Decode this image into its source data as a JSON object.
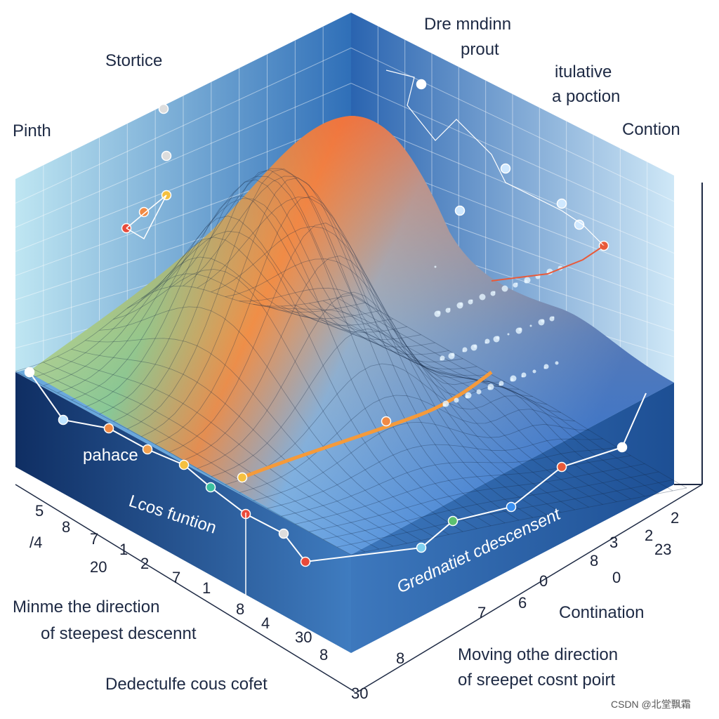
{
  "labels": {
    "stortice": "Stortice",
    "pinth": "Pinth",
    "top_center": [
      "Dre mndinn",
      "prout"
    ],
    "top_right": [
      "itulative",
      "a poction"
    ],
    "contion": "Contion",
    "pahace": "pahace",
    "loss_function": "Lcos funtion",
    "gradient_descent": "Grednatiet cdescensent",
    "minimize": [
      "Minme the direction",
      "of steepest descennt"
    ],
    "bottom_left": "Dedectulfe cous cofet",
    "continuation": "Contination",
    "moving": [
      "Moving othe direction",
      "of sreepet cosnt poirt"
    ],
    "watermark": "CSDN @北堂飘霜"
  },
  "left_axis_numbers": [
    "5",
    "8",
    "/4",
    "7",
    "1",
    "20",
    "2",
    "7",
    "1",
    "8",
    "4",
    "30",
    "8",
    "30"
  ],
  "right_axis_numbers": [
    "2",
    "2",
    "23",
    "3",
    "8",
    "0",
    "0",
    "6",
    "7",
    "8"
  ]
}
